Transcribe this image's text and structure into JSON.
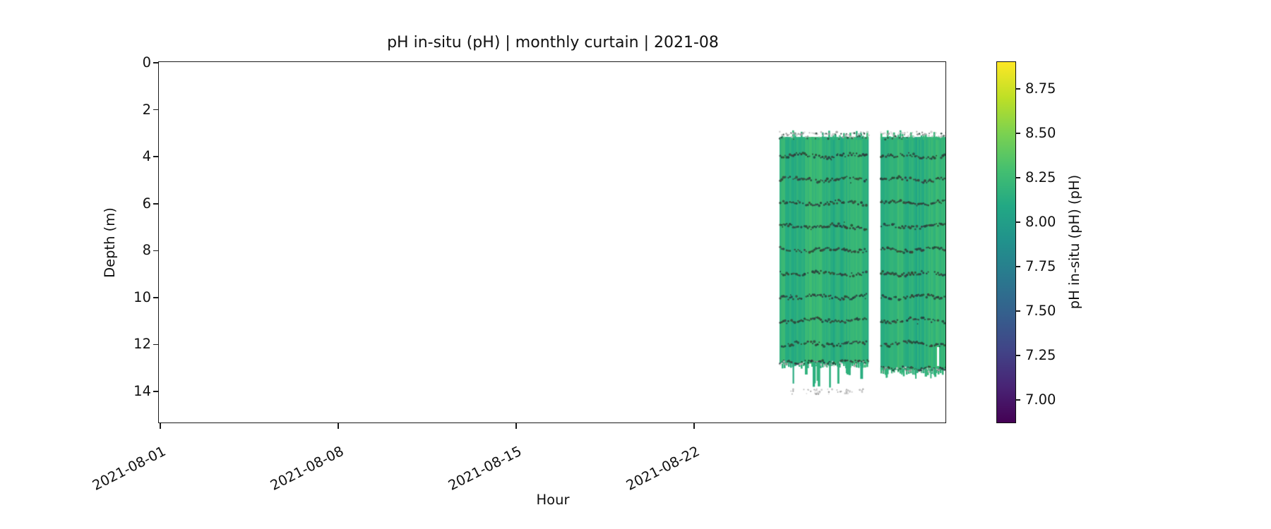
{
  "title": "pH in-situ (pH) | monthly curtain | 2021-08",
  "axes": {
    "xlabel": "Hour",
    "ylabel": "Depth (m)",
    "x_tick_labels": [
      "2021-08-01",
      "2021-08-08",
      "2021-08-15",
      "2021-08-22"
    ],
    "y_tick_labels": [
      "0",
      "2",
      "4",
      "6",
      "8",
      "10",
      "12",
      "14"
    ]
  },
  "colorbar": {
    "label": "pH in-situ (pH) (pH)",
    "tick_labels": [
      "8.75",
      "8.50",
      "8.25",
      "8.00",
      "7.75",
      "7.50",
      "7.25",
      "7.00"
    ],
    "cmap": "viridis",
    "vmin": 6.87,
    "vmax": 8.9
  },
  "chart_data": {
    "type": "heatmap",
    "title": "pH in-situ (pH) | monthly curtain | 2021-08",
    "xlabel": "Hour",
    "ylabel": "Depth (m)",
    "x_ticks": [
      "2021-08-01",
      "2021-08-08",
      "2021-08-15",
      "2021-08-22"
    ],
    "y_ticks": [
      0,
      2,
      4,
      6,
      8,
      10,
      12,
      14
    ],
    "xlim": [
      "2021-08-01 00:00",
      "2021-08-31 22:00"
    ],
    "ylim": [
      15.35,
      0
    ],
    "y_axis_inverted": true,
    "grid": false,
    "legend": "colorbar-right",
    "colorbar": {
      "label": "pH in-situ (pH) (pH)",
      "ticks": [
        7.0,
        7.25,
        7.5,
        7.75,
        8.0,
        8.25,
        8.5,
        8.75
      ],
      "cmap": "viridis",
      "vmin": 6.87,
      "vmax": 8.9
    },
    "fill_color_hex": "#2fb47c",
    "dot_color_hex": "#2e4f44",
    "edge_speckle_color_hex": "#9a9a9a",
    "sensor_row_depths_m": [
      3,
      4,
      5,
      6,
      7,
      8,
      9,
      10,
      11,
      12,
      13
    ],
    "blocks": [
      {
        "name": "deployment-block-1",
        "time_start": "2021-08-25 ~09:00",
        "time_end": "2021-08-28 ~20:00",
        "day_start": 24.36,
        "day_end": 27.83,
        "depth_top_m": 3.0,
        "depth_bottom_m": 12.9,
        "solid_top_m": 3.25,
        "solid_bottom_m": 12.78,
        "mean_value_ph": 8.18,
        "deep_strips": true,
        "deep_strips_max_depth_m": 14.1
      },
      {
        "name": "deployment-block-2",
        "time_start": "2021-08-29 ~08:00",
        "time_end": "2021-08-31 ~22:00",
        "day_start": 28.33,
        "day_end": 30.95,
        "depth_top_m": 3.0,
        "depth_bottom_m": 13.1,
        "solid_top_m": 3.25,
        "solid_bottom_m": 13.05,
        "mean_value_ph": 8.18,
        "deep_strips": false,
        "notch_day": 30.55,
        "notch_top_m": 12.15,
        "notch_bottom_m": 12.95
      }
    ],
    "value_range_displayed_ph": [
      8.0,
      8.35
    ]
  }
}
